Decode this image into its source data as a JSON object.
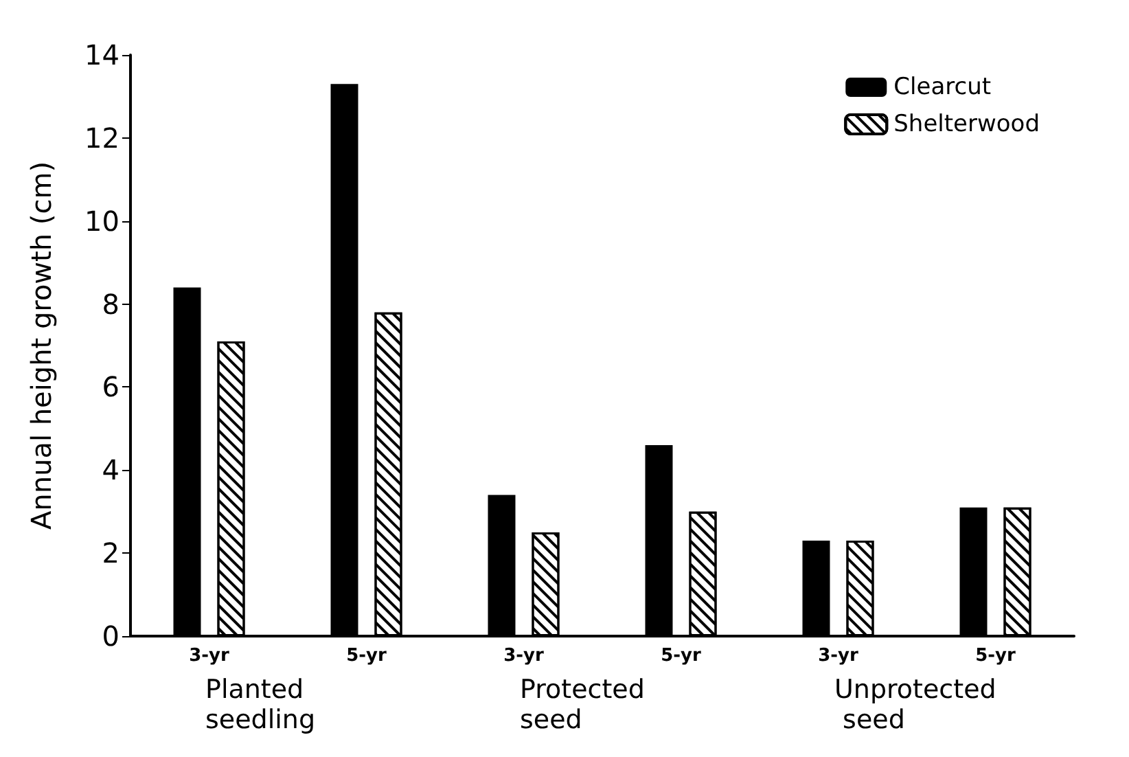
{
  "chart_data": {
    "type": "bar",
    "ylabel": "Annual height growth (cm)",
    "categories": [
      "3-yr",
      "5-yr",
      "3-yr",
      "5-yr",
      "3-yr",
      "5-yr"
    ],
    "series": [
      {
        "name": "Clearcut",
        "color": "#000000",
        "values": [
          8.4,
          13.3,
          3.4,
          4.6,
          2.3,
          3.1
        ]
      },
      {
        "name": "Shelterwood",
        "color": "#ffffff",
        "values": [
          7.1,
          7.8,
          2.5,
          3.0,
          2.3,
          3.1
        ]
      }
    ],
    "annotations": [
      "Planted seedling",
      "Protected seed",
      "Unprotected seed"
    ],
    "ylim": [
      0,
      14
    ],
    "yticks": [
      0,
      2,
      4,
      6,
      8,
      10,
      12,
      14
    ],
    "grid": false,
    "legend": "top right"
  }
}
